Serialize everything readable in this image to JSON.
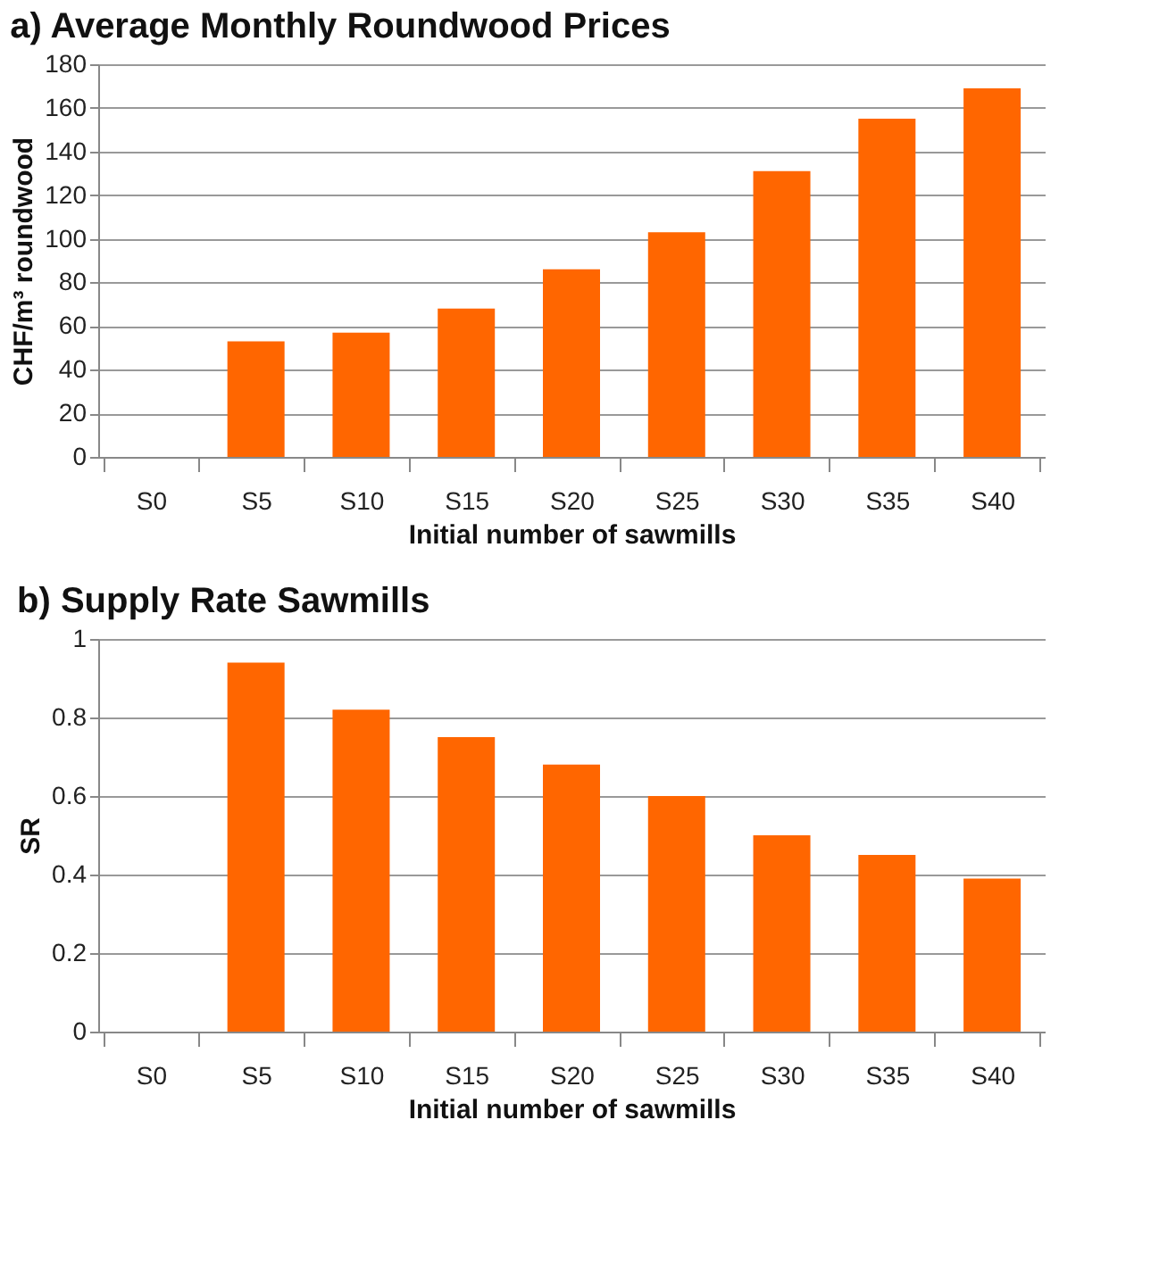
{
  "chart_data": [
    {
      "type": "bar",
      "title": "a) Average Monthly Roundwood Prices",
      "xlabel": "Initial number of sawmills",
      "ylabel": "CHF/m³ roundwood",
      "categories": [
        "S0",
        "S5",
        "S10",
        "S15",
        "S20",
        "S25",
        "S30",
        "S35",
        "S40"
      ],
      "values": [
        null,
        53,
        57,
        68,
        86,
        103,
        131,
        155,
        169
      ],
      "color": "#ff6600",
      "ylim": [
        0,
        180
      ],
      "yticks": [
        0,
        20,
        40,
        60,
        80,
        100,
        120,
        140,
        160,
        180
      ],
      "grid": "y"
    },
    {
      "type": "bar",
      "title": "b) Supply Rate Sawmills",
      "xlabel": "Initial number of sawmills",
      "ylabel": "SR",
      "categories": [
        "S0",
        "S5",
        "S10",
        "S15",
        "S20",
        "S25",
        "S30",
        "S35",
        "S40"
      ],
      "values": [
        null,
        0.94,
        0.82,
        0.75,
        0.68,
        0.6,
        0.5,
        0.45,
        0.39
      ],
      "color": "#ff6600",
      "ylim": [
        0,
        1
      ],
      "yticks": [
        0,
        0.2,
        0.4,
        0.6,
        0.8,
        1
      ],
      "grid": "y"
    }
  ]
}
